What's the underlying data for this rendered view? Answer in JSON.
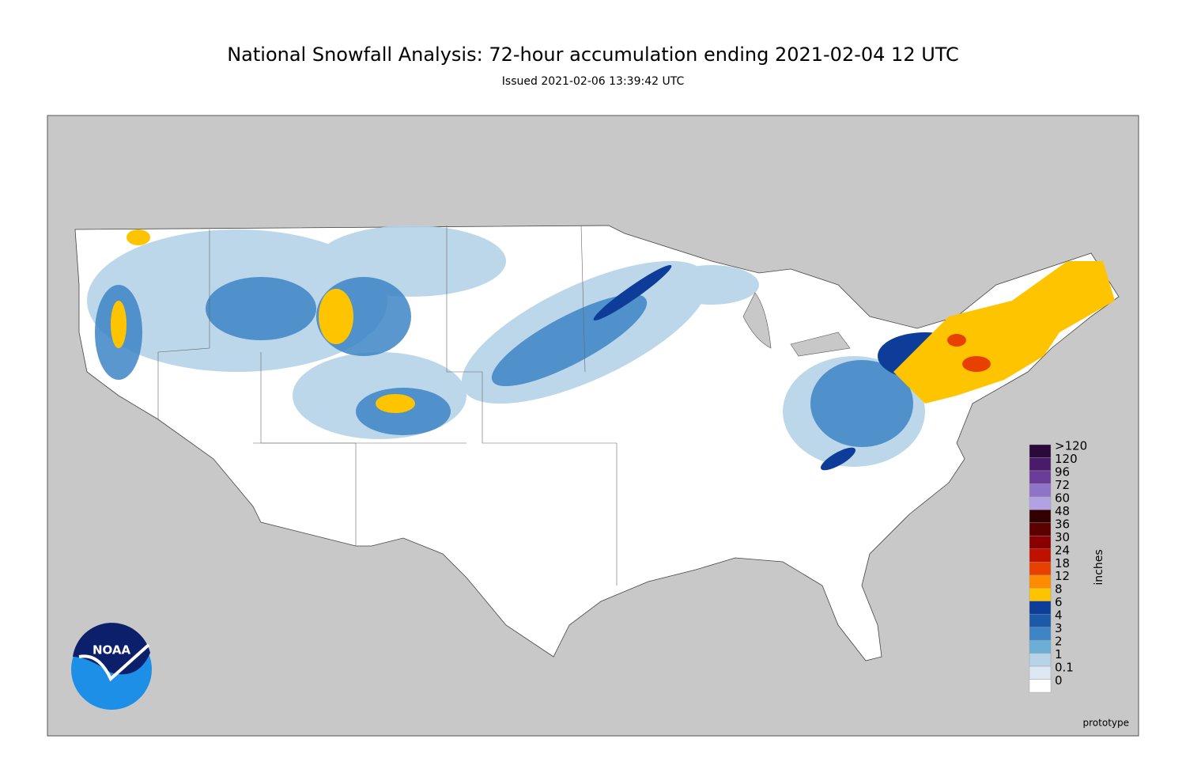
{
  "header": {
    "title": "National Snowfall Analysis: 72-hour accumulation ending 2021-02-04 12 UTC",
    "subtitle": "Issued 2021-02-06 13:39:42 UTC"
  },
  "legend": {
    "unit": "inches",
    "items": [
      {
        "label": ">120",
        "color": "#2b0a3b"
      },
      {
        "label": "120",
        "color": "#4a1b6b"
      },
      {
        "label": "96",
        "color": "#6b3d9b"
      },
      {
        "label": "72",
        "color": "#8f73c9"
      },
      {
        "label": "60",
        "color": "#b2a2e3"
      },
      {
        "label": "48",
        "color": "#320000"
      },
      {
        "label": "36",
        "color": "#5c0000"
      },
      {
        "label": "30",
        "color": "#8a0000"
      },
      {
        "label": "24",
        "color": "#c01000"
      },
      {
        "label": "18",
        "color": "#e84000"
      },
      {
        "label": "12",
        "color": "#ff8c00"
      },
      {
        "label": "8",
        "color": "#ffc400"
      },
      {
        "label": "6",
        "color": "#0d3d99"
      },
      {
        "label": "4",
        "color": "#1a5aa8"
      },
      {
        "label": "3",
        "color": "#3d85c6"
      },
      {
        "label": "2",
        "color": "#6baed6"
      },
      {
        "label": "1",
        "color": "#b6d3e8"
      },
      {
        "label": "0.1",
        "color": "#dde8f3"
      },
      {
        "label": "0",
        "color": "#ffffff"
      }
    ]
  },
  "footer": {
    "note": "prototype"
  },
  "logo": {
    "text": "NOAA"
  }
}
